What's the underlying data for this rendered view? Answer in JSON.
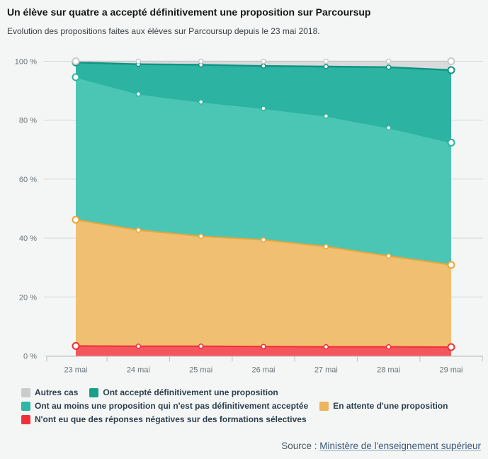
{
  "header": {
    "title": "Un élève sur quatre a accepté définitivement une proposition sur Parcoursup",
    "subtitle": "Evolution des propositions faites aux élèves sur Parcoursup depuis le 23 mai 2018."
  },
  "chart_data": {
    "type": "area",
    "stacked": true,
    "unit": "%",
    "title": "",
    "xlabel": "",
    "ylabel": "",
    "ylim": [
      0,
      100
    ],
    "grid": true,
    "legend_position": "bottom",
    "categories": [
      "23 mai",
      "24 mai",
      "25 mai",
      "26 mai",
      "27 mai",
      "28 mai",
      "29 mai"
    ],
    "y_tick_labels": [
      "0 %",
      "20 %",
      "40 %",
      "60 %",
      "80 %",
      "100 %"
    ],
    "y_tick_values": [
      0,
      20,
      40,
      60,
      80,
      100
    ],
    "series": [
      {
        "name": "N'ont eu que des réponses négatives sur des formations sélectives",
        "fill": "#f4565d",
        "line": "#ee2f36",
        "values": [
          3.4,
          3.3,
          3.3,
          3.2,
          3.1,
          3.1,
          3.0
        ]
      },
      {
        "name": "En attente d'une proposition",
        "fill": "#f1bf72",
        "line": "#e9a63b",
        "values": [
          42.8,
          39.4,
          37.3,
          36.2,
          34.0,
          30.8,
          27.9
        ]
      },
      {
        "name": "Ont au moins une proposition qui n'est pas définitivement acceptée",
        "fill": "#4cc6b4",
        "line": "#2bb3a0",
        "values": [
          48.4,
          46.2,
          45.6,
          44.6,
          44.3,
          43.5,
          41.5
        ]
      },
      {
        "name": "Ont accepté définitivement une proposition",
        "fill": "#2db3a1",
        "line": "#0f9384",
        "values": [
          5.0,
          10.1,
          12.6,
          14.4,
          16.8,
          20.6,
          24.6
        ]
      },
      {
        "name": "Autres cas",
        "fill": "#d9dadb",
        "line": "#c7c9ca",
        "values": [
          0.4,
          1.0,
          1.2,
          1.6,
          1.8,
          2.0,
          3.0
        ]
      }
    ]
  },
  "legend": {
    "items": [
      {
        "label": "Autres cas",
        "color": "#c9cbcc"
      },
      {
        "label": "Ont accepté définitivement une proposition",
        "color": "#17a08a"
      },
      {
        "label": "Ont au moins une proposition qui n'est pas définitivement acceptée",
        "color": "#2bb8a4"
      },
      {
        "label": "En attente d'une proposition",
        "color": "#eeb45e"
      },
      {
        "label": "N'ont eu que des réponses négatives sur des formations sélectives",
        "color": "#ee3138"
      }
    ]
  },
  "source": {
    "label": "Source :",
    "link_text": "Ministère de l'enseignement supérieur"
  }
}
